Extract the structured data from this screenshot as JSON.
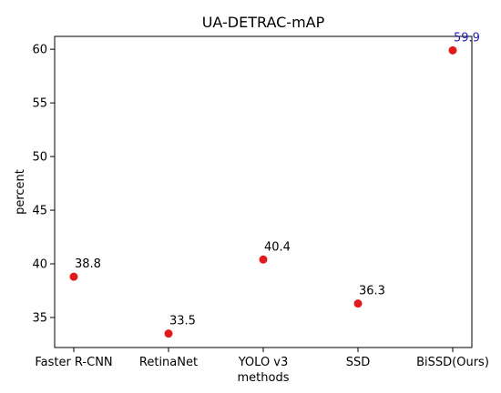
{
  "chart_data": {
    "type": "scatter",
    "title": "UA-DETRAC-mAP",
    "xlabel": "methods",
    "ylabel": "percent",
    "categories": [
      "Faster R-CNN",
      "RetinaNet",
      "YOLO v3",
      "SSD",
      "BiSSD(Ours)"
    ],
    "values": [
      38.8,
      33.5,
      40.4,
      36.3,
      59.9
    ],
    "value_labels": [
      "38.8",
      "33.5",
      "40.4",
      "36.3",
      "59.9"
    ],
    "label_colors": [
      "#000000",
      "#000000",
      "#000000",
      "#000000",
      "#1f1fb4"
    ],
    "point_color": "#e31a1c",
    "ylim": [
      32.2,
      61.2
    ],
    "yticks": [
      35,
      40,
      45,
      50,
      55,
      60
    ],
    "ytick_labels": [
      "35",
      "40",
      "45",
      "50",
      "55",
      "60"
    ],
    "grid": false,
    "legend": "none"
  }
}
